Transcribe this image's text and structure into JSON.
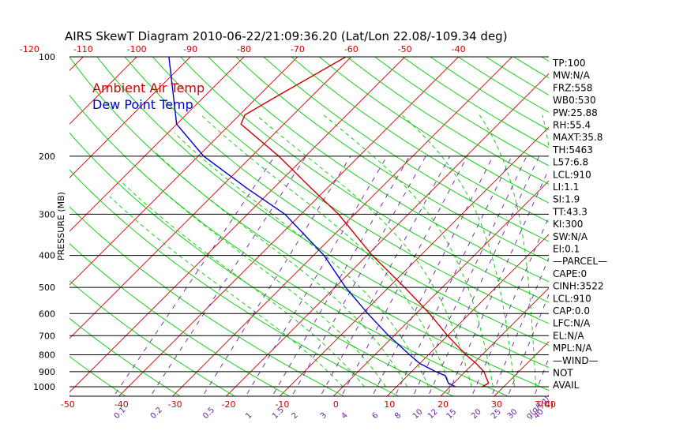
{
  "title": "AIRS SkewT Diagram 2010-06-22/21:09:36.20 (Lat/Lon 22.08/-109.34 deg)",
  "legend": {
    "air": "Ambient Air Temp",
    "dew": "Dew Point Temp"
  },
  "colors": {
    "air": "#cc0000",
    "dew": "#0000cc",
    "dry_adiabat": "#00cc00",
    "moist_adiabat": "#00cc00",
    "mixing": "#6a1fa6",
    "isotherm": "#cc0000"
  },
  "stats": [
    "TP:100",
    "MW:N/A",
    "FRZ:558",
    "WB0:530",
    "PW:25.88",
    "RH:55.4",
    "MAXT:35.8",
    "TH:5463",
    "L57:6.8",
    "LCL:910",
    "LI:1.1",
    "SI:1.9",
    "TT:43.3",
    "KI:300",
    "SW:N/A",
    "EI:0.1",
    "—PARCEL—",
    "CAPE:0",
    "CINH:3522",
    "LCL:910",
    "CAP:0.0",
    "LFC:N/A",
    "EL:N/A",
    "MPL:N/A",
    "—WIND—",
    "NOT",
    "AVAIL"
  ],
  "chart_data": {
    "type": "line",
    "title": "AIRS SkewT Diagram 2010-06-22/21:09:36.20 (Lat/Lon 22.08/-109.34 deg)",
    "ylabel": "PRESSURE (MB)",
    "xlabel": "T(C)",
    "mixing_label": "g(g/kg)",
    "y_scale": "log-pressure",
    "ylim": [
      1050,
      100
    ],
    "pressure_ticks": [
      100,
      200,
      300,
      400,
      500,
      600,
      700,
      800,
      900,
      1000
    ],
    "top_temperature_ticks": [
      -120,
      -110,
      -100,
      -90,
      -80,
      -70,
      -60,
      -50,
      -40
    ],
    "bottom_temperature_ticks": [
      -50,
      -40,
      -30,
      -20,
      -10,
      0,
      10,
      20,
      30,
      40
    ],
    "mixing_ratio_ticks": [
      "0.1",
      "0.2",
      "0.5",
      "1",
      "1.5",
      "2",
      "3",
      "4",
      "6",
      "8",
      "10",
      "12",
      "15",
      "20",
      "25",
      "30",
      "40",
      "g(g/kg)"
    ],
    "series": [
      {
        "name": "Ambient Air Temp",
        "pressure": [
          1000,
          975,
          925,
          900,
          850,
          800,
          700,
          600,
          500,
          400,
          300,
          250,
          200,
          160,
          150,
          135,
          100
        ],
        "temperature": [
          26,
          26.5,
          24.5,
          23.5,
          20.5,
          17,
          10,
          2.5,
          -7,
          -19,
          -33,
          -43,
          -55,
          -68,
          -69,
          -67,
          -61
        ]
      },
      {
        "name": "Dew Point Temp",
        "pressure": [
          1000,
          975,
          925,
          900,
          850,
          800,
          700,
          600,
          500,
          400,
          300,
          250,
          200,
          160,
          100
        ],
        "temperature": [
          21,
          19,
          17,
          14.5,
          10,
          6.5,
          -1,
          -9,
          -18,
          -28,
          -43,
          -55,
          -69,
          -80,
          -94
        ]
      }
    ]
  }
}
